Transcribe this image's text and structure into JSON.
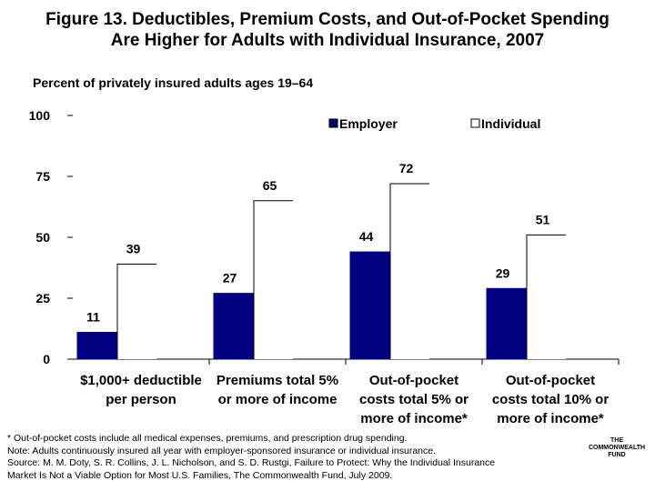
{
  "title_line1": "Figure 13. Deductibles, Premium Costs, and Out-of-Pocket Spending",
  "title_line2": "Are Higher for Adults with Individual Insurance, 2007",
  "subtitle": "Percent of privately insured adults ages 19–64",
  "chart_data": {
    "type": "bar",
    "categories": [
      [
        "$1,000+ deductible",
        "per person"
      ],
      [
        "Premiums total 5%",
        "or more of income"
      ],
      [
        "Out-of-pocket",
        "costs total 5% or",
        "more of income*"
      ],
      [
        "Out-of-pocket",
        "costs total 10% or",
        "more of income*"
      ]
    ],
    "series": [
      {
        "name": "Employer",
        "values": [
          11,
          27,
          44,
          29
        ],
        "color": "#000080"
      },
      {
        "name": "Individual",
        "values": [
          39,
          65,
          72,
          51
        ],
        "color": "#ffffff"
      }
    ],
    "yticks": [
      "0",
      "25",
      "50",
      "75",
      "100"
    ],
    "ylim": [
      0,
      100
    ],
    "legend_position": "top"
  },
  "footnotes": [
    "* Out-of-pocket costs include all medical expenses, premiums, and prescription drug spending.",
    "Note: Adults continuously insured all year with employer-sponsored insurance or individual insurance.",
    "Source: M. M. Doty, S. R. Collins, J. L. Nicholson, and S. D. Rustgi, Failure to Protect: Why the Individual Insurance",
    "Market Is Not a Viable Option for Most U.S. Families, The Commonwealth Fund, July 2009."
  ],
  "logo": [
    "THE",
    "COMMONWEALTH",
    "FUND"
  ]
}
